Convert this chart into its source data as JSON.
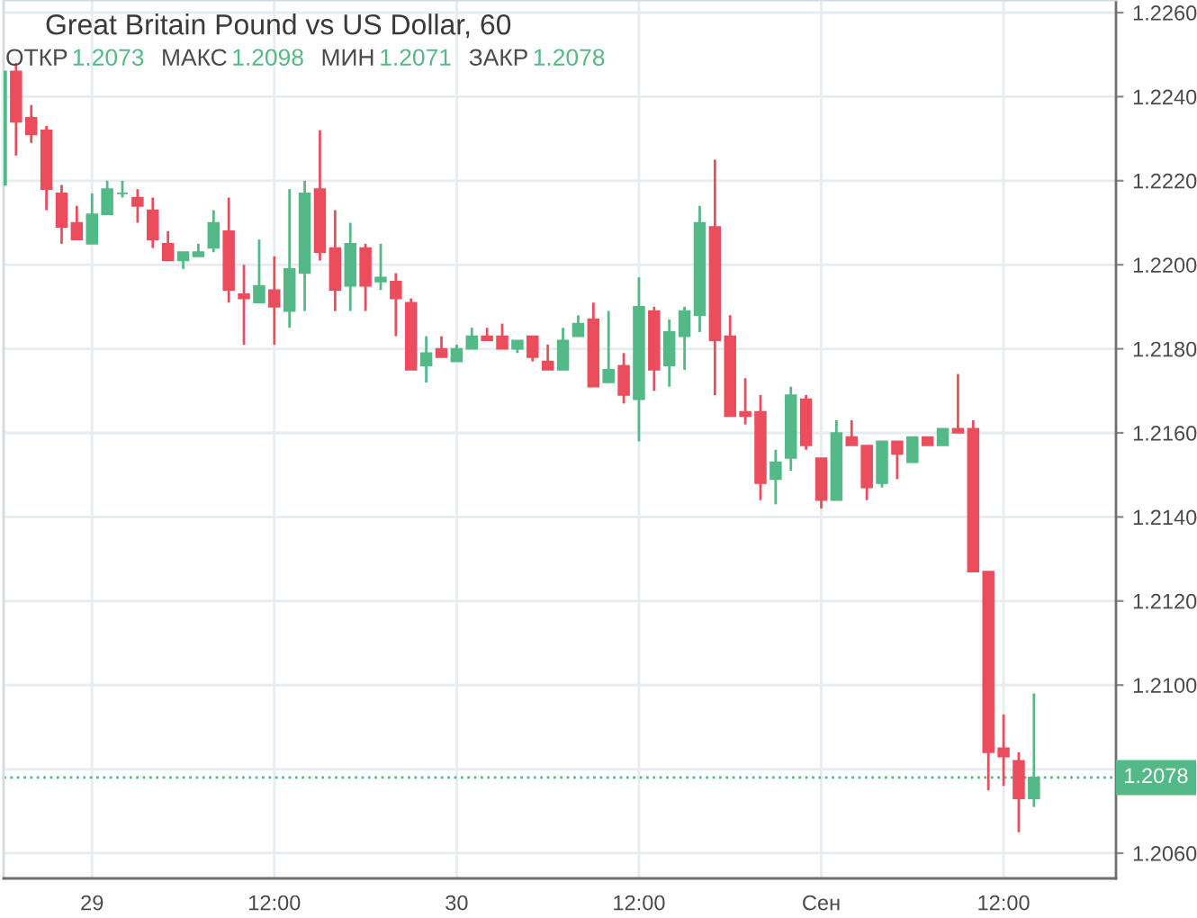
{
  "chart_data": {
    "type": "candlestick",
    "title": "Great Britain Pound vs US Dollar, 60",
    "annotations": [
      "ОТКР",
      "1.2073",
      "МАКС",
      "1.2098",
      "МИН",
      "1.2071",
      "ЗАКР",
      "1.2078"
    ],
    "categories": [
      null,
      null,
      null,
      null,
      null,
      null,
      "29",
      null,
      null,
      null,
      null,
      null,
      null,
      null,
      null,
      null,
      null,
      null,
      "12:00",
      null,
      null,
      null,
      null,
      null,
      null,
      null,
      null,
      null,
      null,
      null,
      "30",
      null,
      null,
      null,
      null,
      null,
      null,
      null,
      null,
      null,
      null,
      null,
      "12:00",
      null,
      null,
      null,
      null,
      null,
      null,
      null,
      null,
      null,
      null,
      null,
      "Сен",
      null,
      null,
      null,
      null,
      null,
      null,
      null,
      null,
      null,
      null,
      null,
      "12:00",
      null,
      null
    ],
    "ohlc": [
      [
        1.2219,
        1.2246,
        1.2219,
        1.2246
      ],
      [
        1.2246,
        1.2248,
        1.2226,
        1.2234
      ],
      [
        1.2235,
        1.2238,
        1.2229,
        1.2231
      ],
      [
        1.2232,
        1.2233,
        1.2213,
        1.2218
      ],
      [
        1.2217,
        1.2219,
        1.2205,
        1.2209
      ],
      [
        1.221,
        1.2214,
        1.2206,
        1.2206
      ],
      [
        1.2205,
        1.2217,
        1.2205,
        1.2212
      ],
      [
        1.2212,
        1.222,
        1.2212,
        1.2218
      ],
      [
        1.2217,
        1.222,
        1.2216,
        1.2217
      ],
      [
        1.2216,
        1.2218,
        1.221,
        1.2214
      ],
      [
        1.2213,
        1.2216,
        1.2204,
        1.2206
      ],
      [
        1.2205,
        1.2208,
        1.2201,
        1.2201
      ],
      [
        1.2201,
        1.2203,
        1.2199,
        1.2203
      ],
      [
        1.2202,
        1.2205,
        1.2202,
        1.2203
      ],
      [
        1.2204,
        1.2213,
        1.2203,
        1.221
      ],
      [
        1.2208,
        1.2216,
        1.2191,
        1.2194
      ],
      [
        1.2193,
        1.22,
        1.2181,
        1.2192
      ],
      [
        1.2191,
        1.2206,
        1.2191,
        1.2195
      ],
      [
        1.2194,
        1.2202,
        1.2181,
        1.219
      ],
      [
        1.2189,
        1.2218,
        1.2185,
        1.2199
      ],
      [
        1.2198,
        1.222,
        1.2189,
        1.2217
      ],
      [
        1.2218,
        1.2232,
        1.2201,
        1.2203
      ],
      [
        1.2204,
        1.2213,
        1.2189,
        1.2194
      ],
      [
        1.2195,
        1.221,
        1.2189,
        1.2205
      ],
      [
        1.2204,
        1.2205,
        1.2189,
        1.2195
      ],
      [
        1.2196,
        1.2205,
        1.2194,
        1.2197
      ],
      [
        1.2196,
        1.2198,
        1.2183,
        1.2192
      ],
      [
        1.2191,
        1.2192,
        1.2175,
        1.2175
      ],
      [
        1.2176,
        1.2183,
        1.2172,
        1.2179
      ],
      [
        1.218,
        1.2183,
        1.2178,
        1.2178
      ],
      [
        1.2177,
        1.2181,
        1.2177,
        1.218
      ],
      [
        1.218,
        1.2185,
        1.218,
        1.2183
      ],
      [
        1.2183,
        1.2185,
        1.2182,
        1.2182
      ],
      [
        1.2183,
        1.2186,
        1.218,
        1.218
      ],
      [
        1.218,
        1.2182,
        1.2179,
        1.2182
      ],
      [
        1.2183,
        1.2183,
        1.2177,
        1.2178
      ],
      [
        1.2177,
        1.2181,
        1.2175,
        1.2175
      ],
      [
        1.2175,
        1.2185,
        1.2175,
        1.2182
      ],
      [
        1.2183,
        1.2188,
        1.2183,
        1.2186
      ],
      [
        1.2187,
        1.2191,
        1.2171,
        1.2171
      ],
      [
        1.2172,
        1.2189,
        1.2172,
        1.2175
      ],
      [
        1.2176,
        1.2179,
        1.2167,
        1.2169
      ],
      [
        1.2168,
        1.2197,
        1.2158,
        1.219
      ],
      [
        1.2189,
        1.219,
        1.217,
        1.2175
      ],
      [
        1.2176,
        1.2187,
        1.2171,
        1.2184
      ],
      [
        1.2183,
        1.219,
        1.2175,
        1.2189
      ],
      [
        1.2188,
        1.2214,
        1.2184,
        1.221
      ],
      [
        1.2209,
        1.2225,
        1.2169,
        1.2182
      ],
      [
        1.2183,
        1.2188,
        1.2164,
        1.2164
      ],
      [
        1.2165,
        1.2173,
        1.2162,
        1.2164
      ],
      [
        1.2165,
        1.2169,
        1.2144,
        1.2148
      ],
      [
        1.2149,
        1.2156,
        1.2143,
        1.2153
      ],
      [
        1.2154,
        1.2171,
        1.2151,
        1.2169
      ],
      [
        1.2168,
        1.2169,
        1.2156,
        1.2157
      ],
      [
        1.2154,
        1.2154,
        1.2142,
        1.2144
      ],
      [
        1.2144,
        1.2163,
        1.2144,
        1.216
      ],
      [
        1.2159,
        1.2163,
        1.2157,
        1.2157
      ],
      [
        1.2157,
        1.2157,
        1.2144,
        1.2147
      ],
      [
        1.2148,
        1.2158,
        1.2147,
        1.2158
      ],
      [
        1.2158,
        1.2158,
        1.2149,
        1.2155
      ],
      [
        1.2153,
        1.2159,
        1.2153,
        1.2159
      ],
      [
        1.2159,
        1.2159,
        1.2157,
        1.2157
      ],
      [
        1.2157,
        1.2161,
        1.2157,
        1.2161
      ],
      [
        1.2161,
        1.2174,
        1.216,
        1.216
      ],
      [
        1.2161,
        1.2163,
        1.2127,
        1.2127
      ],
      [
        1.2127,
        1.2127,
        1.2075,
        1.2084
      ],
      [
        1.2085,
        1.2093,
        1.2076,
        1.2083
      ],
      [
        1.2082,
        1.2084,
        1.2065,
        1.2073
      ],
      [
        1.2073,
        1.2098,
        1.2071,
        1.2078
      ]
    ],
    "colors": [
      "#53b987",
      "#eb4d5c",
      "#eb4d5c",
      "#eb4d5c",
      "#eb4d5c",
      "#eb4d5c",
      "#53b987",
      "#53b987",
      "#53b987",
      "#eb4d5c",
      "#eb4d5c",
      "#eb4d5c",
      "#53b987",
      "#53b987",
      "#53b987",
      "#eb4d5c",
      "#eb4d5c",
      "#53b987",
      "#eb4d5c",
      "#53b987",
      "#53b987",
      "#eb4d5c",
      "#eb4d5c",
      "#53b987",
      "#eb4d5c",
      "#53b987",
      "#eb4d5c",
      "#eb4d5c",
      "#53b987",
      "#eb4d5c",
      "#53b987",
      "#53b987",
      "#eb4d5c",
      "#eb4d5c",
      "#53b987",
      "#eb4d5c",
      "#eb4d5c",
      "#53b987",
      "#53b987",
      "#eb4d5c",
      "#53b987",
      "#eb4d5c",
      "#53b987",
      "#eb4d5c",
      "#53b987",
      "#53b987",
      "#53b987",
      "#eb4d5c",
      "#eb4d5c",
      "#eb4d5c",
      "#eb4d5c",
      "#53b987",
      "#53b987",
      "#eb4d5c",
      "#eb4d5c",
      "#53b987",
      "#eb4d5c",
      "#eb4d5c",
      "#53b987",
      "#eb4d5c",
      "#53b987",
      "#eb4d5c",
      "#53b987",
      "#eb4d5c",
      "#eb4d5c",
      "#eb4d5c",
      "#eb4d5c",
      "#eb4d5c",
      "#53b987"
    ],
    "ylim": [
      1.2054,
      1.2263
    ],
    "yticks": [
      {
        "value": 1.206,
        "label": "1.2060"
      },
      {
        "value": 1.208,
        "label": null
      },
      {
        "value": 1.21,
        "label": "1.2100"
      },
      {
        "value": 1.212,
        "label": "1.2120"
      },
      {
        "value": 1.214,
        "label": "1.2140"
      },
      {
        "value": 1.216,
        "label": "1.2160"
      },
      {
        "value": 1.218,
        "label": "1.2180"
      },
      {
        "value": 1.22,
        "label": "1.2200"
      },
      {
        "value": 1.222,
        "label": "1.2220"
      },
      {
        "value": 1.224,
        "label": "1.2240"
      },
      {
        "value": 1.226,
        "label": "1.2260"
      }
    ],
    "ref_lines": [
      {
        "axis": "y",
        "value": 1.2078,
        "label": "1.2078",
        "color": "#53b987",
        "line_style": "dotted"
      }
    ],
    "grid": true
  }
}
